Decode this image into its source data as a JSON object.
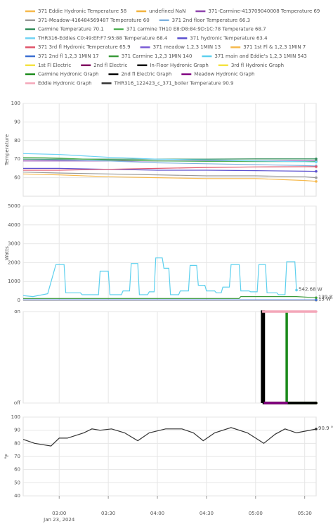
{
  "chart_data": [
    {
      "type": "line",
      "y_label": "Temperature",
      "ylim": [
        50,
        100
      ],
      "yticks": [
        60,
        70,
        80,
        90,
        100
      ],
      "xlim": [
        "02:38",
        "05:37"
      ],
      "series": [
        {
          "name": "371 Eddie Hydronic Temperature 58",
          "color": "#f6b94c",
          "x": [
            "02:38",
            "03:00",
            "03:30",
            "04:00",
            "04:30",
            "05:00",
            "05:30",
            "05:37"
          ],
          "values": [
            62,
            61.5,
            60.5,
            60,
            59.5,
            59.5,
            58.5,
            58
          ]
        },
        {
          "name": "undefined NaN",
          "color": "#f2b33d",
          "x": [
            "02:38",
            "03:00",
            "03:30",
            "04:00",
            "04:30",
            "05:00",
            "05:30",
            "05:37"
          ],
          "values": [
            null,
            null,
            null,
            null,
            null,
            null,
            null,
            null
          ]
        },
        {
          "name": "371-Carmine-413709040008 Temperature 69",
          "color": "#8e44ad",
          "x": [
            "02:38",
            "03:00",
            "03:30",
            "04:00",
            "04:30",
            "05:00",
            "05:30",
            "05:37"
          ],
          "values": [
            69,
            69,
            69,
            69,
            69,
            69,
            69,
            69
          ]
        },
        {
          "name": "371-Meadow-416484569487 Temperature 60",
          "color": "#9a9a9a",
          "x": [
            "02:38",
            "03:00",
            "03:30",
            "04:00",
            "04:30",
            "05:00",
            "05:30",
            "05:37"
          ],
          "values": [
            63,
            62.5,
            62,
            61.5,
            61,
            61,
            60.5,
            60
          ]
        },
        {
          "name": "371 2nd floor Temperature 66.3",
          "color": "#7fb3e0",
          "x": [
            "02:38",
            "03:00",
            "03:30",
            "04:00",
            "04:30",
            "05:00",
            "05:30",
            "05:37"
          ],
          "values": [
            70,
            69.5,
            69,
            68,
            67.5,
            67,
            66.5,
            66.3
          ]
        },
        {
          "name": "Carmine Temperature 70.1",
          "color": "#2e8b57",
          "x": [
            "02:38",
            "03:00",
            "03:30",
            "04:00",
            "04:30",
            "05:00",
            "05:30",
            "05:37"
          ],
          "values": [
            70,
            70,
            70,
            70,
            70,
            70.1,
            70.1,
            70.1
          ]
        },
        {
          "name": "371 carmine TH10 E8:D8:84:9D:1C:78 Temperature 68.7",
          "color": "#4caf50",
          "x": [
            "02:38",
            "03:00",
            "03:30",
            "04:00",
            "04:30",
            "05:00",
            "05:30",
            "05:37"
          ],
          "values": [
            71,
            70.5,
            69.5,
            69,
            68.8,
            68.7,
            68.7,
            68.7
          ]
        },
        {
          "name": "THR316-Eddies C0:49:EF:F7:95:88 Temperature 68.4",
          "color": "#6fd3f5",
          "x": [
            "02:38",
            "03:00",
            "03:30",
            "04:00",
            "04:30",
            "05:00",
            "05:30",
            "05:37"
          ],
          "values": [
            73,
            72.5,
            71,
            70,
            69.5,
            69,
            68.6,
            68.4
          ]
        },
        {
          "name": "371 hydronic Temperature 63.4",
          "color": "#5a4fcf",
          "x": [
            "02:38",
            "03:00",
            "03:30",
            "04:00",
            "04:30",
            "05:00",
            "05:30",
            "05:37"
          ],
          "values": [
            65,
            65,
            64.5,
            64,
            64,
            63.8,
            63.5,
            63.4
          ]
        },
        {
          "name": "371 3rd fl Hydronic Temperature 65.9",
          "color": "#e0556b",
          "x": [
            "02:38",
            "03:00",
            "03:30",
            "04:00",
            "04:30",
            "05:00",
            "05:30",
            "05:37"
          ],
          "values": [
            64,
            64,
            64.5,
            65,
            65.5,
            65.8,
            65.9,
            65.9
          ]
        }
      ]
    },
    {
      "type": "line",
      "y_label": "Watts",
      "ylim": [
        0,
        5000
      ],
      "yticks": [
        0,
        1000,
        2000,
        3000,
        4000,
        5000
      ],
      "xlim": [
        "02:38",
        "05:37"
      ],
      "series": [
        {
          "name": "371 meadow 1,2,3 1MIN 13",
          "color": "#7b5cd6",
          "x": [
            "02:38",
            "05:37"
          ],
          "values": [
            13,
            13
          ],
          "value_labels": [
            null,
            "13 W"
          ]
        },
        {
          "name": "371 1st Fl & 1,2,3 1MIN 7",
          "color": "#f6b94c",
          "x": [
            "02:38",
            "05:37"
          ],
          "values": [
            7,
            7
          ]
        },
        {
          "name": "371 2nd fl 1,2,3 1MIN 17",
          "color": "#3b6fd1",
          "x": [
            "02:38",
            "05:37"
          ],
          "values": [
            17,
            17
          ]
        },
        {
          "name": "371 Carmine 1,2,3 1MIN 140",
          "color": "#3a9a3a",
          "x": [
            "02:38",
            "04:50",
            "04:51",
            "05:25",
            "05:37"
          ],
          "values": [
            100,
            100,
            200,
            200,
            139.82
          ],
          "value_labels": [
            null,
            null,
            null,
            null,
            "139.82 W"
          ]
        },
        {
          "name": "371 main and Eddie's 1,2,3 1MIN 543",
          "color": "#5dd0ee",
          "x": [
            "02:38",
            "02:44",
            "02:53",
            "02:58",
            "03:03",
            "03:04",
            "03:13",
            "03:14",
            "03:24",
            "03:25",
            "03:30",
            "03:31",
            "03:38",
            "03:39",
            "03:43",
            "03:44",
            "03:48",
            "03:49",
            "03:54",
            "03:55",
            "03:58",
            "03:59",
            "04:03",
            "04:04",
            "04:07",
            "04:08",
            "04:13",
            "04:14",
            "04:19",
            "04:20",
            "04:24",
            "04:25",
            "04:29",
            "04:30",
            "04:35",
            "04:36",
            "04:39",
            "04:40",
            "04:44",
            "04:45",
            "04:50",
            "04:51",
            "04:56",
            "04:57",
            "05:01",
            "05:02",
            "05:06",
            "05:07",
            "05:13",
            "05:14",
            "05:18",
            "05:19",
            "05:24",
            "05:25"
          ],
          "values": [
            250,
            200,
            350,
            1900,
            1900,
            400,
            400,
            300,
            300,
            1550,
            1550,
            300,
            300,
            500,
            500,
            1950,
            1950,
            300,
            300,
            450,
            450,
            2250,
            2250,
            1700,
            1700,
            300,
            300,
            500,
            500,
            1850,
            1850,
            800,
            800,
            500,
            500,
            400,
            400,
            700,
            700,
            1900,
            1900,
            500,
            500,
            450,
            450,
            1900,
            1900,
            400,
            400,
            300,
            300,
            2050,
            2050,
            542.68
          ],
          "value_labels": [
            null,
            null,
            null,
            null,
            null,
            null,
            null,
            null,
            null,
            null,
            null,
            null,
            null,
            null,
            null,
            null,
            null,
            null,
            null,
            null,
            null,
            null,
            null,
            null,
            null,
            null,
            null,
            null,
            null,
            null,
            null,
            null,
            null,
            null,
            null,
            null,
            null,
            null,
            null,
            null,
            null,
            null,
            null,
            null,
            null,
            null,
            null,
            null,
            null,
            null,
            null,
            null,
            null,
            "542.68 W"
          ]
        }
      ]
    },
    {
      "type": "line",
      "ylim": [
        0,
        1
      ],
      "yticks": [
        {
          "value": 0,
          "label": "off"
        },
        {
          "value": 1,
          "label": "on"
        }
      ],
      "xlim": [
        "02:38",
        "05:37"
      ],
      "series": [
        {
          "name": "1st Fl Electric",
          "color": "#f5e342",
          "x": [
            "05:05",
            "05:37"
          ],
          "values": [
            0,
            0
          ]
        },
        {
          "name": "2nd fl Electric",
          "color": "#800060",
          "x": [
            "05:05",
            "05:37"
          ],
          "values": [
            0,
            0
          ]
        },
        {
          "name": "In-Floor Hydronic Graph",
          "color": "#000000",
          "x": [
            "05:04",
            "05:04",
            "05:05",
            "05:05",
            "05:37"
          ],
          "values": [
            0,
            1,
            1,
            0,
            0
          ]
        },
        {
          "name": "3rd fl Hydronic Graph",
          "color": "#f5e342",
          "x": [
            "05:05",
            "05:37"
          ],
          "values": [
            0,
            0
          ]
        },
        {
          "name": "Carmine Hydronic Graph",
          "color": "#1a8a1a",
          "x": [
            "05:19",
            "05:19",
            "05:37"
          ],
          "values": [
            1,
            0,
            0
          ]
        },
        {
          "name": "2nd fl Electric Graph",
          "color": "#000000",
          "x": [
            "05:05",
            "05:37"
          ],
          "values": [
            0,
            0
          ]
        },
        {
          "name": "Meadow Hydronic Graph",
          "color": "#800080",
          "x": [
            "05:05",
            "05:19"
          ],
          "values": [
            0,
            0
          ]
        },
        {
          "name": "Eddie Hydronic Graph",
          "color": "#f4a7b9",
          "x": [
            "05:04",
            "05:37"
          ],
          "values": [
            1,
            1
          ]
        }
      ]
    },
    {
      "type": "line",
      "y_label": "°F",
      "ylim": [
        40,
        100
      ],
      "yticks": [
        40,
        50,
        60,
        70,
        80,
        90,
        100
      ],
      "xlim": [
        "02:38",
        "05:37"
      ],
      "xticks": [
        "03:00",
        "03:30",
        "04:00",
        "04:30",
        "05:00",
        "05:30"
      ],
      "x_sublabel": "Jan 23, 2024",
      "series": [
        {
          "name": "THR316_122423_c_371_boiler Temperature 90.9",
          "color": "#333333",
          "x": [
            "02:38",
            "02:45",
            "02:55",
            "03:00",
            "03:05",
            "03:15",
            "03:20",
            "03:25",
            "03:32",
            "03:40",
            "03:48",
            "03:55",
            "04:05",
            "04:15",
            "04:22",
            "04:28",
            "04:35",
            "04:45",
            "04:55",
            "05:05",
            "05:12",
            "05:18",
            "05:25",
            "05:37"
          ],
          "values": [
            83,
            80,
            78,
            84,
            84,
            88,
            91,
            90,
            91,
            88,
            82,
            88,
            91,
            91,
            88,
            82,
            88,
            92,
            88,
            80,
            87,
            91,
            88,
            90.9
          ],
          "value_labels": [
            null,
            null,
            null,
            null,
            null,
            null,
            null,
            null,
            null,
            null,
            null,
            null,
            null,
            null,
            null,
            null,
            null,
            null,
            null,
            null,
            null,
            null,
            null,
            "90.9 °F"
          ]
        }
      ]
    }
  ]
}
